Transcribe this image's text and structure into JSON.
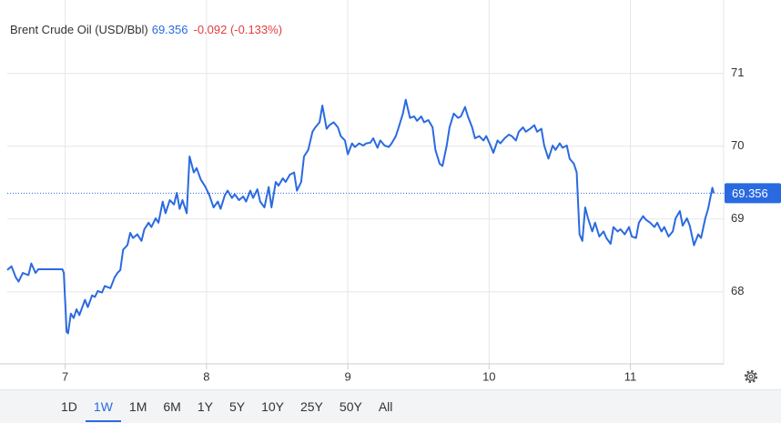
{
  "chart_data": {
    "type": "line",
    "title": "Brent Crude Oil (USD/Bbl)",
    "price": 69.356,
    "change_label": "-0.092 (-0.133%)",
    "color": "#2a6ae0",
    "x": [
      6.59,
      6.62,
      6.65,
      6.67,
      6.7,
      6.74,
      6.76,
      6.79,
      6.81,
      6.98,
      6.99,
      7.01,
      7.02,
      7.04,
      7.06,
      7.08,
      7.1,
      7.14,
      7.16,
      7.19,
      7.21,
      7.23,
      7.26,
      7.28,
      7.32,
      7.35,
      7.37,
      7.39,
      7.41,
      7.44,
      7.46,
      7.48,
      7.51,
      7.54,
      7.56,
      7.59,
      7.61,
      7.64,
      7.66,
      7.69,
      7.71,
      7.74,
      7.77,
      7.79,
      7.81,
      7.83,
      7.86,
      7.88,
      7.91,
      7.93,
      7.96,
      7.99,
      8.02,
      8.05,
      8.08,
      8.1,
      8.13,
      8.15,
      8.18,
      8.2,
      8.23,
      8.26,
      8.28,
      8.31,
      8.33,
      8.36,
      8.38,
      8.41,
      8.44,
      8.46,
      8.49,
      8.51,
      8.54,
      8.56,
      8.59,
      8.62,
      8.64,
      8.67,
      8.69,
      8.72,
      8.75,
      8.77,
      8.8,
      8.82,
      8.85,
      8.87,
      8.9,
      8.93,
      8.95,
      8.98,
      9.0,
      9.03,
      9.05,
      9.08,
      9.11,
      9.13,
      9.16,
      9.18,
      9.21,
      9.23,
      9.26,
      9.29,
      9.31,
      9.34,
      9.36,
      9.39,
      9.41,
      9.44,
      9.47,
      9.49,
      9.52,
      9.54,
      9.57,
      9.6,
      9.62,
      9.65,
      9.67,
      9.7,
      9.72,
      9.75,
      9.78,
      9.8,
      9.83,
      9.85,
      9.88,
      9.9,
      9.93,
      9.96,
      9.98,
      10.01,
      10.03,
      10.06,
      10.08,
      10.11,
      10.14,
      10.16,
      10.19,
      10.21,
      10.24,
      10.26,
      10.29,
      10.32,
      10.34,
      10.37,
      10.39,
      10.42,
      10.45,
      10.47,
      10.5,
      10.52,
      10.55,
      10.57,
      10.6,
      10.62,
      10.64,
      10.66,
      10.68,
      10.7,
      10.73,
      10.75,
      10.78,
      10.81,
      10.83,
      10.86,
      10.88,
      10.91,
      10.93,
      10.96,
      10.99,
      11.01,
      11.04,
      11.06,
      11.09,
      11.11,
      11.14,
      11.17,
      11.19,
      11.22,
      11.24,
      11.27,
      11.3,
      11.32,
      11.35,
      11.37,
      11.4,
      11.42,
      11.45,
      11.48,
      11.5,
      11.53,
      11.55,
      11.58,
      11.59
    ],
    "values": [
      68.3,
      68.35,
      68.2,
      68.14,
      68.26,
      68.23,
      68.39,
      68.26,
      68.31,
      68.31,
      68.26,
      67.45,
      67.43,
      67.7,
      67.64,
      67.76,
      67.68,
      67.89,
      67.79,
      67.95,
      67.93,
      68.01,
      67.99,
      68.08,
      68.05,
      68.2,
      68.26,
      68.3,
      68.58,
      68.64,
      68.81,
      68.74,
      68.79,
      68.7,
      68.86,
      68.95,
      68.89,
      69.01,
      68.95,
      69.24,
      69.08,
      69.26,
      69.2,
      69.36,
      69.14,
      69.26,
      69.08,
      69.86,
      69.64,
      69.7,
      69.54,
      69.45,
      69.33,
      69.16,
      69.24,
      69.14,
      69.33,
      69.39,
      69.29,
      69.34,
      69.26,
      69.31,
      69.24,
      69.39,
      69.29,
      69.41,
      69.24,
      69.16,
      69.44,
      69.16,
      69.51,
      69.46,
      69.56,
      69.51,
      69.61,
      69.64,
      69.39,
      69.51,
      69.86,
      69.95,
      70.2,
      70.26,
      70.33,
      70.56,
      70.24,
      70.29,
      70.33,
      70.26,
      70.14,
      70.08,
      69.89,
      70.04,
      69.99,
      70.04,
      70.01,
      70.04,
      70.05,
      70.11,
      69.98,
      70.08,
      70.01,
      69.99,
      70.04,
      70.14,
      70.26,
      70.45,
      70.64,
      70.39,
      70.41,
      70.35,
      70.41,
      70.33,
      70.36,
      70.26,
      69.95,
      69.76,
      69.73,
      70.01,
      70.26,
      70.45,
      70.39,
      70.41,
      70.54,
      70.41,
      70.26,
      70.11,
      70.14,
      70.08,
      70.14,
      70.01,
      69.91,
      70.08,
      70.04,
      70.11,
      70.16,
      70.14,
      70.08,
      70.2,
      70.26,
      70.2,
      70.24,
      70.29,
      70.2,
      70.24,
      70.01,
      69.83,
      70.01,
      69.95,
      70.04,
      69.98,
      70.01,
      69.83,
      69.76,
      69.64,
      68.79,
      68.7,
      69.16,
      69.01,
      68.83,
      68.95,
      68.76,
      68.83,
      68.74,
      68.66,
      68.89,
      68.83,
      68.86,
      68.79,
      68.89,
      68.76,
      68.74,
      68.95,
      69.04,
      68.99,
      68.95,
      68.89,
      68.95,
      68.83,
      68.89,
      68.76,
      68.83,
      69.01,
      69.11,
      68.91,
      69.01,
      68.91,
      68.64,
      68.79,
      68.74,
      69.01,
      69.14,
      69.43,
      69.356
    ],
    "xlim": [
      6.59,
      11.66
    ],
    "ylim": [
      67.01,
      72.01
    ],
    "xticks": [
      7,
      8,
      9,
      10,
      11
    ],
    "yticks": [
      68,
      69,
      70,
      71
    ],
    "grid": true,
    "range_buttons": [
      "1D",
      "1W",
      "1M",
      "6M",
      "1Y",
      "5Y",
      "10Y",
      "25Y",
      "50Y",
      "All"
    ],
    "selected_range": "1W"
  }
}
